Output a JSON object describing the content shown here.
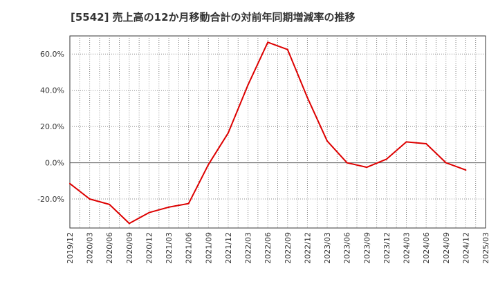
{
  "chart_data": {
    "type": "line",
    "title": "[5542]  売上高の12か月移動合計の対前年同期増減率の推移",
    "xlabel": "",
    "ylabel": "",
    "ylim": [
      -36,
      70
    ],
    "y_ticks": [
      60,
      40,
      20,
      0,
      -20
    ],
    "y_tick_labels": [
      "60.0%",
      "40.0%",
      "20.0%",
      "0.0%",
      "-20.0%"
    ],
    "categories": [
      "2019/12",
      "2020/03",
      "2020/06",
      "2020/09",
      "2020/12",
      "2021/03",
      "2021/06",
      "2021/09",
      "2021/12",
      "2022/03",
      "2022/06",
      "2022/09",
      "2022/12",
      "2023/03",
      "2023/06",
      "2023/09",
      "2023/12",
      "2024/03",
      "2024/06",
      "2024/09",
      "2024/12",
      "2025/03"
    ],
    "series": [
      {
        "name": "増減率",
        "color": "#dd0000",
        "values": [
          -11.5,
          -20.0,
          -23.0,
          -33.5,
          -27.5,
          -24.5,
          -22.5,
          -1.0,
          16.5,
          43.0,
          66.5,
          62.5,
          36.0,
          12.0,
          0.0,
          -2.5,
          2.0,
          11.5,
          10.5,
          0.0,
          -4.0,
          null
        ]
      }
    ],
    "grid": true,
    "legend": "none"
  }
}
